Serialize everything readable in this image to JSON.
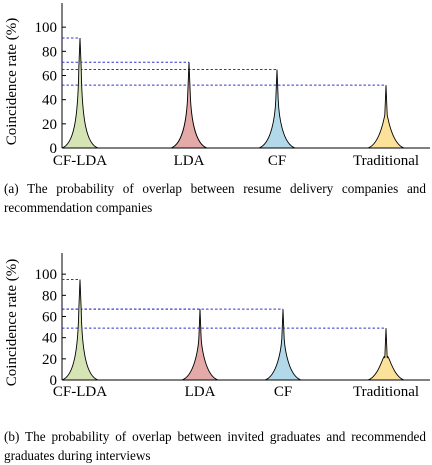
{
  "chart_data": [
    {
      "type": "area",
      "categories": [
        "CF-LDA",
        "LDA",
        "CF",
        "Traditional"
      ],
      "values": [
        91,
        71,
        65,
        52
      ],
      "colors": [
        "#d5e3b5",
        "#e3aaa8",
        "#b2d9ea",
        "#fbe19a"
      ],
      "title": "",
      "xlabel": "",
      "ylabel": "Coincidence rate (%)",
      "ylim": [
        0,
        120
      ],
      "yticks": [
        "0",
        "20",
        "40",
        "60",
        "80",
        "100"
      ],
      "grid": false,
      "reference_lines": "dashed",
      "caption": "(a) The probability of overlap between resume delivery companies and recommendation companies"
    },
    {
      "type": "area",
      "categories": [
        "CF-LDA",
        "LDA",
        "CF",
        "Traditional"
      ],
      "values": [
        95,
        67,
        67,
        49
      ],
      "colors": [
        "#d5e3b5",
        "#e3aaa8",
        "#b2d9ea",
        "#fbe19a"
      ],
      "title": "",
      "xlabel": "",
      "ylabel": "Coincidence rate (%)",
      "ylim": [
        0,
        120
      ],
      "yticks": [
        "0",
        "20",
        "40",
        "60",
        "80",
        "100"
      ],
      "grid": false,
      "reference_lines": "dashed",
      "caption": "(b) The probability of overlap between invited graduates and recommended graduates during interviews"
    }
  ]
}
